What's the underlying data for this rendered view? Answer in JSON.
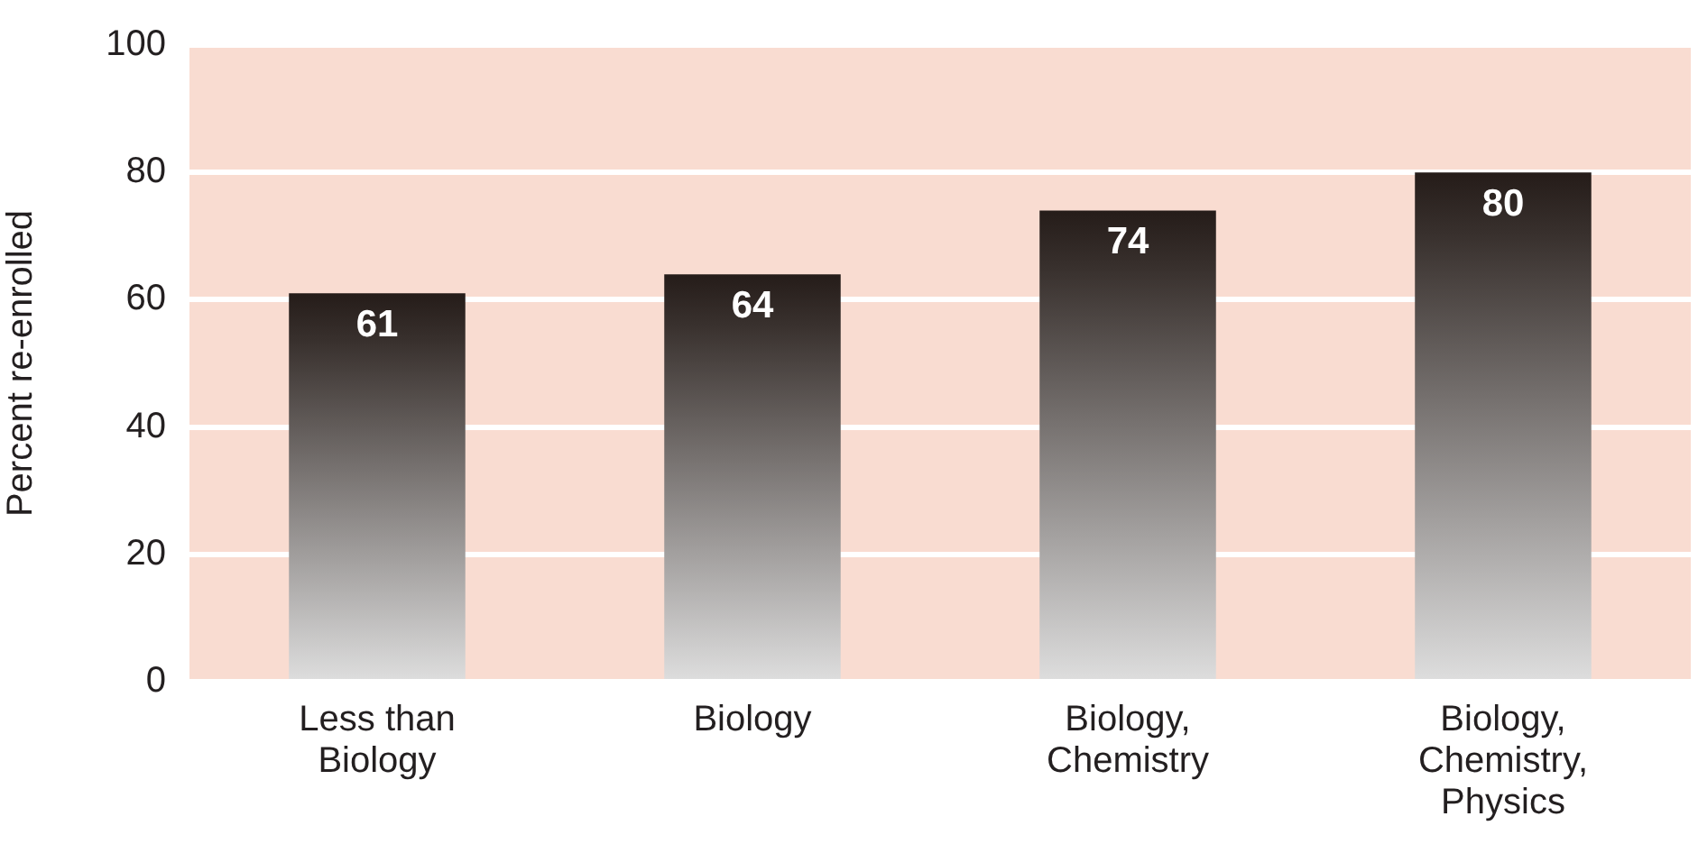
{
  "chart_data": {
    "type": "bar",
    "ylabel": "Percent re-enrolled",
    "categories": [
      "Less than Biology",
      "Biology",
      "Biology, Chemistry",
      "Biology, Chemistry, Physics"
    ],
    "values": [
      61,
      64,
      74,
      80
    ],
    "color": "#251c19",
    "ylim": [
      0,
      100
    ],
    "yticks": [
      0,
      20,
      40,
      60,
      80,
      100
    ],
    "grid": "y",
    "data_labels": true
  }
}
